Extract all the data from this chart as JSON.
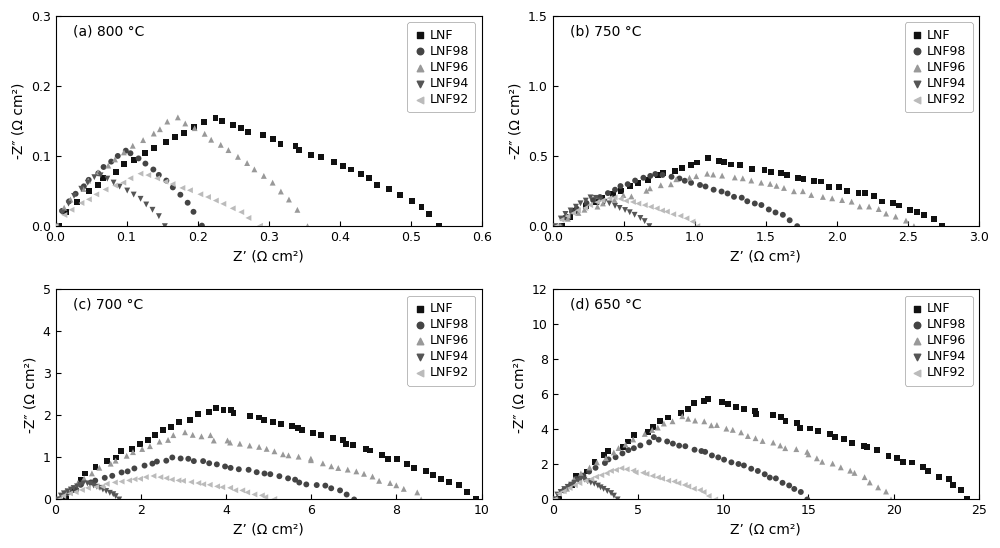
{
  "panels": [
    {
      "label": "(a) 800 °C",
      "xlim": [
        0,
        0.6
      ],
      "ylim": [
        0,
        0.3
      ],
      "xticks": [
        0.0,
        0.1,
        0.2,
        0.3,
        0.4,
        0.5,
        0.6
      ],
      "yticks": [
        0.0,
        0.1,
        0.2,
        0.3
      ],
      "series": [
        {
          "name": "LNF",
          "color": "#111111",
          "marker": "s",
          "x_start": 0.0,
          "x_end": 0.54,
          "peak_x": 0.22,
          "peak_y": 0.155,
          "n": 40
        },
        {
          "name": "LNF98",
          "color": "#444444",
          "marker": "o",
          "x_start": 0.0,
          "x_end": 0.205,
          "peak_x": 0.1,
          "peak_y": 0.11,
          "n": 22
        },
        {
          "name": "LNF96",
          "color": "#999999",
          "marker": "^",
          "x_start": 0.0,
          "x_end": 0.355,
          "peak_x": 0.17,
          "peak_y": 0.155,
          "n": 30
        },
        {
          "name": "LNF94",
          "color": "#555555",
          "marker": "v",
          "x_start": 0.0,
          "x_end": 0.155,
          "peak_x": 0.06,
          "peak_y": 0.075,
          "n": 18
        },
        {
          "name": "LNF92",
          "color": "#bbbbbb",
          "marker": "<",
          "x_start": 0.0,
          "x_end": 0.285,
          "peak_x": 0.12,
          "peak_y": 0.075,
          "n": 25
        }
      ]
    },
    {
      "label": "(b) 750 °C",
      "xlim": [
        0,
        3.0
      ],
      "ylim": [
        0,
        1.5
      ],
      "xticks": [
        0.0,
        0.5,
        1.0,
        1.5,
        2.0,
        2.5,
        3.0
      ],
      "yticks": [
        0.0,
        0.5,
        1.0,
        1.5
      ],
      "series": [
        {
          "name": "LNF",
          "color": "#111111",
          "marker": "s",
          "x_start": 0.05,
          "x_end": 2.75,
          "peak_x": 1.1,
          "peak_y": 0.48,
          "n": 45
        },
        {
          "name": "LNF98",
          "color": "#444444",
          "marker": "o",
          "x_start": 0.04,
          "x_end": 1.72,
          "peak_x": 0.72,
          "peak_y": 0.38,
          "n": 35
        },
        {
          "name": "LNF96",
          "color": "#999999",
          "marker": "^",
          "x_start": 0.05,
          "x_end": 2.55,
          "peak_x": 1.1,
          "peak_y": 0.38,
          "n": 40
        },
        {
          "name": "LNF94",
          "color": "#555555",
          "marker": "v",
          "x_start": 0.02,
          "x_end": 0.68,
          "peak_x": 0.27,
          "peak_y": 0.21,
          "n": 20
        },
        {
          "name": "LNF92",
          "color": "#bbbbbb",
          "marker": "<",
          "x_start": 0.02,
          "x_end": 1.02,
          "peak_x": 0.42,
          "peak_y": 0.21,
          "n": 25
        }
      ]
    },
    {
      "label": "(c) 700 °C",
      "xlim": [
        0,
        10
      ],
      "ylim": [
        0,
        5
      ],
      "xticks": [
        0,
        2,
        4,
        6,
        8,
        10
      ],
      "yticks": [
        0,
        1,
        2,
        3,
        4,
        5
      ],
      "series": [
        {
          "name": "LNF",
          "color": "#111111",
          "marker": "s",
          "x_start": 0.2,
          "x_end": 9.8,
          "peak_x": 3.8,
          "peak_y": 2.2,
          "n": 50
        },
        {
          "name": "LNF98",
          "color": "#444444",
          "marker": "o",
          "x_start": 0.1,
          "x_end": 7.0,
          "peak_x": 2.8,
          "peak_y": 1.0,
          "n": 40
        },
        {
          "name": "LNF96",
          "color": "#999999",
          "marker": "^",
          "x_start": 0.1,
          "x_end": 8.6,
          "peak_x": 3.0,
          "peak_y": 1.6,
          "n": 45
        },
        {
          "name": "LNF94",
          "color": "#555555",
          "marker": "v",
          "x_start": 0.05,
          "x_end": 1.5,
          "peak_x": 0.7,
          "peak_y": 0.4,
          "n": 20
        },
        {
          "name": "LNF92",
          "color": "#bbbbbb",
          "marker": "<",
          "x_start": 0.05,
          "x_end": 5.1,
          "peak_x": 2.2,
          "peak_y": 0.55,
          "n": 35
        }
      ]
    },
    {
      "label": "(d) 650 °C",
      "xlim": [
        0,
        25
      ],
      "ylim": [
        0,
        12
      ],
      "xticks": [
        0,
        5,
        10,
        15,
        20,
        25
      ],
      "yticks": [
        0,
        2,
        4,
        6,
        8,
        10,
        12
      ],
      "series": [
        {
          "name": "LNF",
          "color": "#111111",
          "marker": "s",
          "x_start": 0.5,
          "x_end": 24.5,
          "peak_x": 9.0,
          "peak_y": 5.8,
          "n": 50
        },
        {
          "name": "LNF98",
          "color": "#444444",
          "marker": "o",
          "x_start": 0.3,
          "x_end": 15.0,
          "peak_x": 6.0,
          "peak_y": 3.5,
          "n": 40
        },
        {
          "name": "LNF96",
          "color": "#999999",
          "marker": "^",
          "x_start": 0.3,
          "x_end": 20.0,
          "peak_x": 7.5,
          "peak_y": 4.8,
          "n": 45
        },
        {
          "name": "LNF94",
          "color": "#555555",
          "marker": "v",
          "x_start": 0.1,
          "x_end": 3.8,
          "peak_x": 1.7,
          "peak_y": 1.2,
          "n": 20
        },
        {
          "name": "LNF92",
          "color": "#bbbbbb",
          "marker": "<",
          "x_start": 0.1,
          "x_end": 9.5,
          "peak_x": 4.0,
          "peak_y": 1.8,
          "n": 32
        }
      ]
    }
  ],
  "xlabel": "Z’ (Ω cm²)",
  "ylabel": "-Z″ (Ω cm²)",
  "legend_names": [
    "LNF",
    "LNF98",
    "LNF96",
    "LNF94",
    "LNF92"
  ],
  "legend_markers": [
    "s",
    "o",
    "^",
    "v",
    "<"
  ],
  "legend_colors": [
    "#111111",
    "#444444",
    "#999999",
    "#555555",
    "#bbbbbb"
  ],
  "background_color": "#ffffff",
  "fontsize": 10
}
